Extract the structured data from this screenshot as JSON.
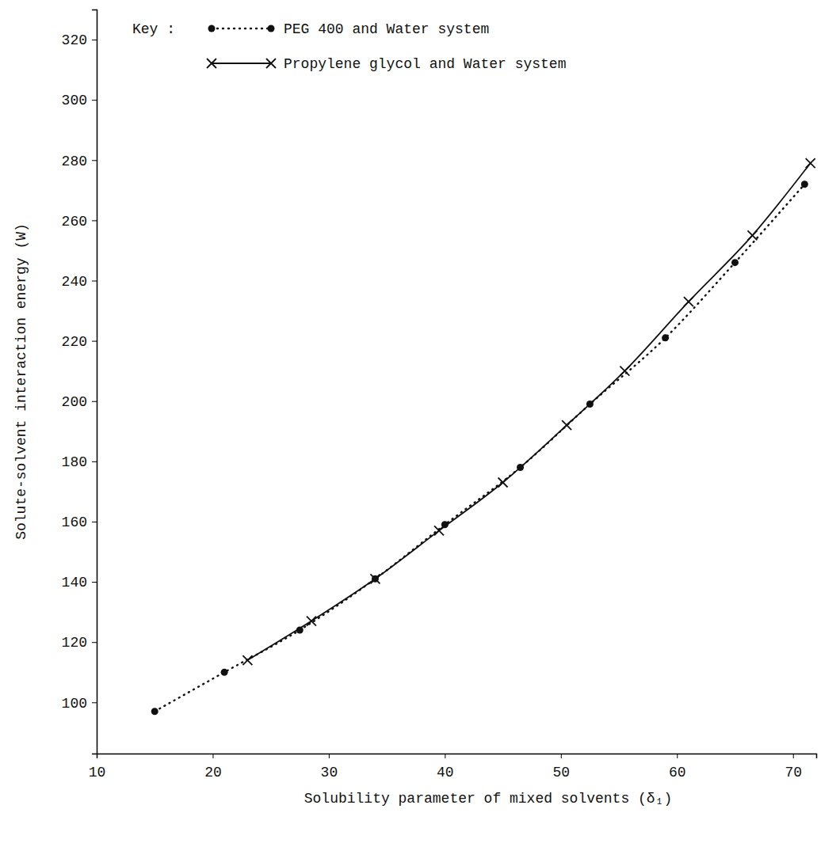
{
  "chart_data": {
    "type": "line",
    "x_label": "Solubility parameter of mixed solvents (δ₁)",
    "y_label": "Solute-solvent interaction energy (W)",
    "legend_title": "Key :",
    "legend": "upper left",
    "grid": false,
    "xlim": [
      10,
      72
    ],
    "xticks": [
      10,
      20,
      30,
      40,
      50,
      60,
      70
    ],
    "ylim": [
      83,
      330
    ],
    "yticks": [
      100,
      120,
      140,
      160,
      180,
      200,
      220,
      240,
      260,
      280,
      300,
      320
    ],
    "series": [
      {
        "name": "PEG 400 and Water system",
        "color": "#111111",
        "marker": "dot",
        "line_style": "dotted",
        "x": [
          15,
          21,
          27.5,
          34,
          40,
          46.5,
          52.5,
          59,
          65,
          71
        ],
        "values": [
          97,
          110,
          124,
          141,
          159,
          178,
          199,
          221,
          246,
          272
        ]
      },
      {
        "name": "Propylene glycol and Water system",
        "color": "#111111",
        "marker": "x",
        "line_style": "solid",
        "x": [
          23,
          28.5,
          34,
          39.5,
          45,
          50.5,
          55.5,
          61,
          66.5,
          71.5
        ],
        "values": [
          114,
          127,
          141,
          157,
          173,
          192,
          210,
          233,
          255,
          279
        ]
      }
    ]
  }
}
